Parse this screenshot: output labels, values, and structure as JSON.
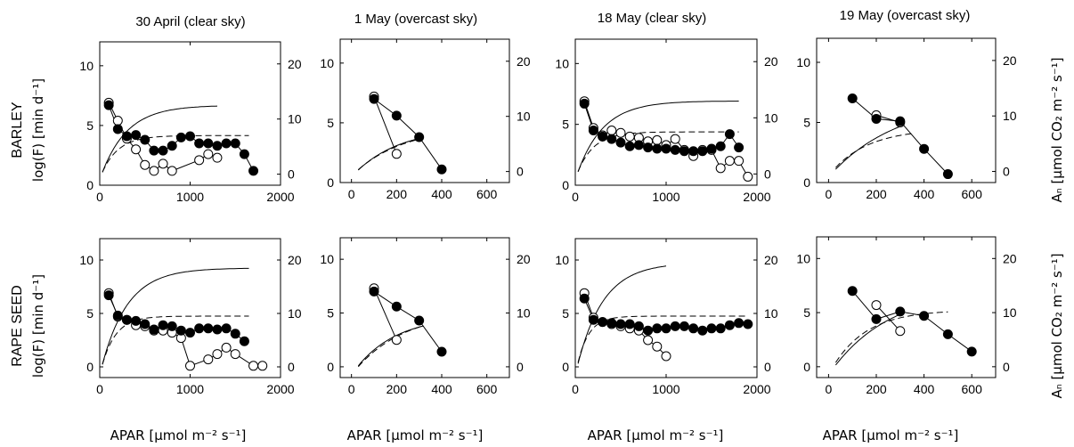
{
  "figure": {
    "columns": [
      "30 April (clear sky)",
      "1 May (overcast sky)",
      "18 May (clear sky)",
      "19 May (overcast sky)"
    ],
    "rows": [
      "BARLEY",
      "RAPE SEED"
    ],
    "ylabel_left": "log(F) [min d⁻¹]",
    "ylabel_right": "Aₙ [µmol CO₂ m⁻² s⁻¹]",
    "xlabel": "APAR [µmol m⁻² s⁻¹]",
    "style": {
      "ink": "#000000",
      "background": "#ffffff"
    }
  },
  "chart_data": [
    {
      "id": "barley-30apr",
      "row": "BARLEY",
      "column": "30 April (clear sky)",
      "type": "line",
      "xlim": [
        0,
        2000
      ],
      "xticks": [
        0,
        1000,
        2000
      ],
      "ylim_left": [
        0,
        12
      ],
      "yticks_left": [
        0,
        5,
        10
      ],
      "ylim_right": [
        -2,
        24
      ],
      "yticks_right": [
        0,
        10,
        20
      ],
      "filled": {
        "x": [
          100,
          200,
          300,
          400,
          500,
          600,
          700,
          800,
          900,
          1000,
          1100,
          1200,
          1300,
          1400,
          1500,
          1600,
          1700
        ],
        "y": [
          6.7,
          4.7,
          4.1,
          4.2,
          3.8,
          2.9,
          2.9,
          3.3,
          4.0,
          4.1,
          3.5,
          3.5,
          3.3,
          3.5,
          3.5,
          2.6,
          1.2
        ]
      },
      "open": {
        "x": [
          100,
          200,
          300,
          400,
          500,
          600,
          700,
          800,
          1100,
          1200,
          1300
        ],
        "y": [
          6.9,
          5.4,
          3.9,
          3.0,
          1.7,
          1.2,
          1.8,
          1.2,
          2.1,
          2.6,
          2.3
        ]
      },
      "solid_curve": {
        "amax": 13.5,
        "k": 0.0035,
        "rd": 1,
        "xmax": 1300
      },
      "dashed_curve": {
        "amax": 7.8,
        "k": 0.0055,
        "rd": 0.8,
        "xmax": 1650
      }
    },
    {
      "id": "barley-1may",
      "row": "BARLEY",
      "column": "1 May (overcast sky)",
      "type": "line",
      "xlim": [
        -50,
        700
      ],
      "xticks": [
        0,
        200,
        400,
        600
      ],
      "ylim_left": [
        0,
        12
      ],
      "yticks_left": [
        0,
        5,
        10
      ],
      "ylim_right": [
        -2,
        24
      ],
      "yticks_right": [
        0,
        10,
        20
      ],
      "filled": {
        "x": [
          100,
          200,
          300,
          400
        ],
        "y": [
          7.0,
          5.6,
          3.8,
          1.1
        ]
      },
      "open": {
        "x": [
          100,
          200
        ],
        "y": [
          7.2,
          2.4
        ]
      },
      "solid_curve": {
        "amax": 9,
        "k": 0.005,
        "rd": 1,
        "xmax": 300
      },
      "dashed_curve": {
        "amax": 9,
        "k": 0.0045,
        "rd": 0.8,
        "xmax": 300
      }
    },
    {
      "id": "barley-18may",
      "row": "BARLEY",
      "column": "18 May (clear sky)",
      "type": "line",
      "xlim": [
        0,
        2000
      ],
      "xticks": [
        0,
        1000,
        2000
      ],
      "ylim_left": [
        0,
        12
      ],
      "yticks_left": [
        0,
        5,
        10
      ],
      "ylim_right": [
        -2,
        24
      ],
      "yticks_right": [
        0,
        10,
        20
      ],
      "filled": {
        "x": [
          100,
          200,
          300,
          400,
          500,
          600,
          700,
          800,
          900,
          1000,
          1100,
          1200,
          1300,
          1400,
          1500,
          1600,
          1700,
          1800
        ],
        "y": [
          6.7,
          4.5,
          4.0,
          3.8,
          3.5,
          3.2,
          3.3,
          3.1,
          3.0,
          3.0,
          2.9,
          2.8,
          2.8,
          2.8,
          3.0,
          3.2,
          4.2,
          3.1
        ]
      },
      "open": {
        "x": [
          100,
          200,
          300,
          400,
          500,
          600,
          700,
          800,
          900,
          1000,
          1100,
          1200,
          1300,
          1400,
          1500,
          1600,
          1700,
          1800,
          1900
        ],
        "y": [
          6.9,
          4.7,
          4.1,
          4.5,
          4.3,
          4.0,
          3.9,
          3.6,
          3.7,
          3.3,
          3.8,
          2.9,
          2.4,
          2.9,
          2.9,
          1.4,
          2.0,
          2.0,
          0.7
        ]
      },
      "solid_curve": {
        "amax": 14,
        "k": 0.0035,
        "rd": 1,
        "xmax": 1800
      },
      "dashed_curve": {
        "amax": 8.3,
        "k": 0.0055,
        "rd": 0.8,
        "xmax": 1800
      }
    },
    {
      "id": "barley-19may",
      "row": "BARLEY",
      "column": "19 May (overcast sky)",
      "type": "line",
      "xlim": [
        -50,
        700
      ],
      "xticks": [
        0,
        200,
        400,
        600
      ],
      "ylim_left": [
        0,
        12
      ],
      "yticks_left": [
        0,
        5,
        10
      ],
      "ylim_right": [
        -2,
        24
      ],
      "yticks_right": [
        0,
        10,
        20
      ],
      "filled": {
        "x": [
          100,
          200,
          300,
          400,
          500
        ],
        "y": [
          7.0,
          5.3,
          5.1,
          2.8,
          0.7
        ]
      },
      "open": {
        "x": [
          200,
          300
        ],
        "y": [
          5.6,
          5.0
        ]
      },
      "solid_curve": {
        "amax": 14,
        "k": 0.0035,
        "rd": 1,
        "xmax": 300
      },
      "dashed_curve": {
        "amax": 8.5,
        "k": 0.0065,
        "rd": 0.8,
        "xmax": 350
      }
    },
    {
      "id": "rape-30apr",
      "row": "RAPE SEED",
      "column": "30 April (clear sky)",
      "type": "line",
      "xlim": [
        0,
        2000
      ],
      "xticks": [
        0,
        1000,
        2000
      ],
      "ylim_left": [
        -1,
        12
      ],
      "yticks_left": [
        0,
        5,
        10
      ],
      "ylim_right": [
        -2,
        24
      ],
      "yticks_right": [
        0,
        10,
        20
      ],
      "filled": {
        "x": [
          100,
          200,
          300,
          400,
          500,
          600,
          700,
          800,
          900,
          1000,
          1100,
          1200,
          1300,
          1400,
          1500,
          1600
        ],
        "y": [
          6.7,
          4.8,
          4.4,
          4.3,
          4.0,
          3.5,
          3.9,
          3.8,
          3.4,
          3.2,
          3.6,
          3.6,
          3.5,
          3.6,
          3.1,
          2.4
        ]
      },
      "open": {
        "x": [
          100,
          200,
          300,
          400,
          500,
          600,
          700,
          800,
          900,
          1000,
          1200,
          1300,
          1400,
          1500,
          1700,
          1800
        ],
        "y": [
          6.9,
          4.7,
          4.4,
          3.9,
          3.8,
          3.4,
          3.4,
          3.2,
          2.7,
          0.1,
          0.7,
          1.2,
          1.8,
          1.2,
          0.1,
          0.1
        ]
      },
      "solid_curve": {
        "amax": 20,
        "k": 0.0035,
        "rd": 1.5,
        "xmax": 1650
      },
      "dashed_curve": {
        "amax": 11,
        "k": 0.0065,
        "rd": 1.5,
        "xmax": 1650
      }
    },
    {
      "id": "rape-1may",
      "row": "RAPE SEED",
      "column": "1 May (overcast sky)",
      "type": "line",
      "xlim": [
        -50,
        700
      ],
      "xticks": [
        0,
        200,
        400,
        600
      ],
      "ylim_left": [
        -1,
        12
      ],
      "yticks_left": [
        0,
        5,
        10
      ],
      "ylim_right": [
        -2,
        24
      ],
      "yticks_right": [
        0,
        10,
        20
      ],
      "filled": {
        "x": [
          100,
          200,
          300,
          400
        ],
        "y": [
          7.0,
          5.6,
          4.3,
          1.4
        ]
      },
      "open": {
        "x": [
          100,
          200
        ],
        "y": [
          7.3,
          2.5
        ]
      },
      "solid_curve": {
        "amax": 11,
        "k": 0.0055,
        "rd": 1.5,
        "xmax": 320
      },
      "dashed_curve": {
        "amax": 12,
        "k": 0.0045,
        "rd": 1.5,
        "xmax": 320
      }
    },
    {
      "id": "rape-18may",
      "row": "RAPE SEED",
      "column": "18 May (clear sky)",
      "type": "line",
      "xlim": [
        0,
        2000
      ],
      "xticks": [
        0,
        1000,
        2000
      ],
      "ylim_left": [
        -1,
        12
      ],
      "yticks_left": [
        0,
        5,
        10
      ],
      "ylim_right": [
        -2,
        24
      ],
      "yticks_right": [
        0,
        10,
        20
      ],
      "filled": {
        "x": [
          100,
          200,
          300,
          400,
          500,
          600,
          700,
          800,
          900,
          1000,
          1100,
          1200,
          1300,
          1400,
          1500,
          1600,
          1700,
          1800,
          1900
        ],
        "y": [
          6.4,
          4.4,
          4.2,
          4.1,
          4.0,
          4.0,
          3.8,
          3.4,
          3.6,
          3.6,
          3.8,
          3.8,
          3.6,
          3.4,
          3.6,
          3.6,
          3.9,
          4.1,
          4.0
        ]
      },
      "open": {
        "x": [
          100,
          200,
          300,
          400,
          500,
          600,
          700,
          800,
          900,
          1000
        ],
        "y": [
          6.9,
          4.6,
          4.2,
          4.0,
          3.8,
          3.6,
          3.4,
          2.5,
          1.9,
          1.0
        ]
      },
      "solid_curve": {
        "amax": 21,
        "k": 0.0035,
        "rd": 1.5,
        "xmax": 1000
      },
      "dashed_curve": {
        "amax": 11,
        "k": 0.008,
        "rd": 1.5,
        "xmax": 1900
      }
    },
    {
      "id": "rape-19may",
      "row": "RAPE SEED",
      "column": "19 May (overcast sky)",
      "type": "line",
      "xlim": [
        -50,
        700
      ],
      "xticks": [
        0,
        200,
        400,
        600
      ],
      "ylim_left": [
        -1,
        12
      ],
      "yticks_left": [
        0,
        5,
        10
      ],
      "ylim_right": [
        -2,
        24
      ],
      "yticks_right": [
        0,
        10,
        20
      ],
      "filled": {
        "x": [
          100,
          200,
          300,
          400,
          500,
          600
        ],
        "y": [
          7.0,
          4.4,
          5.1,
          4.7,
          3.0,
          1.4
        ]
      },
      "open": {
        "x": [
          200,
          300
        ],
        "y": [
          5.7,
          3.3
        ]
      },
      "solid_curve": {
        "amax": 16,
        "k": 0.004,
        "rd": 1.5,
        "xmax": 300
      },
      "dashed_curve": {
        "amax": 12,
        "k": 0.007,
        "rd": 1.5,
        "xmax": 500
      }
    }
  ]
}
